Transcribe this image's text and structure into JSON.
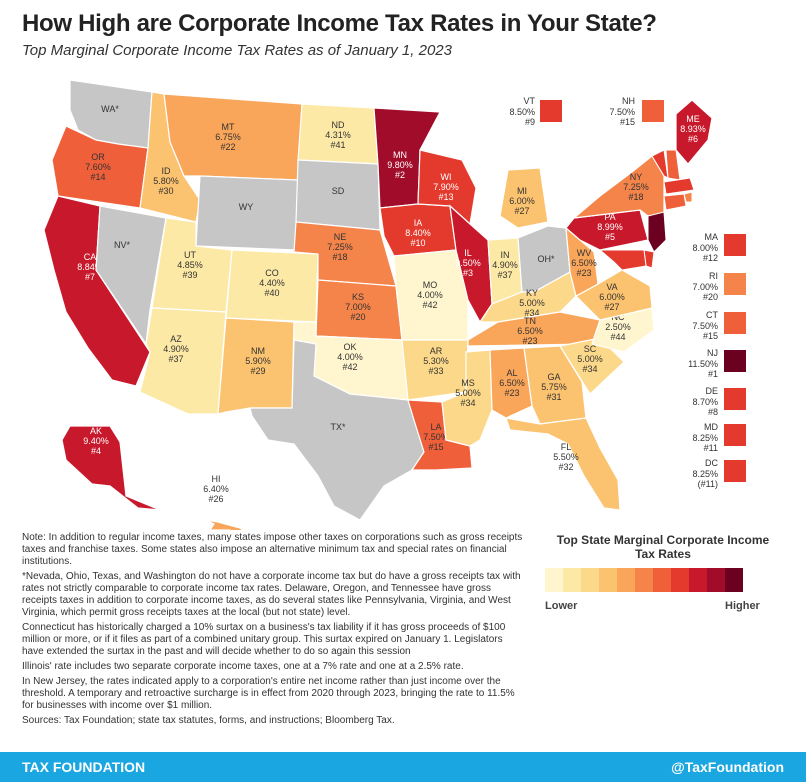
{
  "title": "How High are Corporate Income Tax Rates in Your State?",
  "subtitle": "Top Marginal Corporate Income Tax Rates as of January 1, 2023",
  "colors": {
    "none": "#c6c6c6",
    "c1": "#fff6cf",
    "c2": "#fde9a6",
    "c3": "#fcd98a",
    "c4": "#fbc26f",
    "c5": "#f9a55a",
    "c6": "#f4844a",
    "c7": "#ef5f3a",
    "c8": "#e33a2d",
    "c9": "#c8182b",
    "c10": "#a00c2a",
    "c11": "#6b0020"
  },
  "states": [
    {
      "code": "WA",
      "rate": "",
      "rank": "",
      "label": "WA*",
      "tier": "none"
    },
    {
      "code": "OR",
      "rate": "7.60%",
      "rank": "#14",
      "label": "OR",
      "tier": "c7"
    },
    {
      "code": "CA",
      "rate": "8.84%",
      "rank": "#7",
      "label": "CA",
      "tier": "c9"
    },
    {
      "code": "NV",
      "rate": "",
      "rank": "",
      "label": "NV*",
      "tier": "none"
    },
    {
      "code": "ID",
      "rate": "5.80%",
      "rank": "#30",
      "label": "ID",
      "tier": "c4"
    },
    {
      "code": "MT",
      "rate": "6.75%",
      "rank": "#22",
      "label": "MT",
      "tier": "c5"
    },
    {
      "code": "WY",
      "rate": "",
      "rank": "",
      "label": "WY",
      "tier": "none"
    },
    {
      "code": "UT",
      "rate": "4.85%",
      "rank": "#39",
      "label": "UT",
      "tier": "c2"
    },
    {
      "code": "AZ",
      "rate": "4.90%",
      "rank": "#37",
      "label": "AZ",
      "tier": "c2"
    },
    {
      "code": "CO",
      "rate": "4.40%",
      "rank": "#40",
      "label": "CO",
      "tier": "c2"
    },
    {
      "code": "NM",
      "rate": "5.90%",
      "rank": "#29",
      "label": "NM",
      "tier": "c4"
    },
    {
      "code": "ND",
      "rate": "4.31%",
      "rank": "#41",
      "label": "ND",
      "tier": "c2"
    },
    {
      "code": "SD",
      "rate": "",
      "rank": "",
      "label": "SD",
      "tier": "none"
    },
    {
      "code": "NE",
      "rate": "7.25%",
      "rank": "#18",
      "label": "NE",
      "tier": "c6"
    },
    {
      "code": "KS",
      "rate": "7.00%",
      "rank": "#20",
      "label": "KS",
      "tier": "c6"
    },
    {
      "code": "OK",
      "rate": "4.00%",
      "rank": "#42",
      "label": "OK",
      "tier": "c1"
    },
    {
      "code": "TX",
      "rate": "",
      "rank": "",
      "label": "TX*",
      "tier": "none"
    },
    {
      "code": "MN",
      "rate": "9.80%",
      "rank": "#2",
      "label": "MN",
      "tier": "c10"
    },
    {
      "code": "IA",
      "rate": "8.40%",
      "rank": "#10",
      "label": "IA",
      "tier": "c8"
    },
    {
      "code": "MO",
      "rate": "4.00%",
      "rank": "#42",
      "label": "MO",
      "tier": "c1"
    },
    {
      "code": "AR",
      "rate": "5.30%",
      "rank": "#33",
      "label": "AR",
      "tier": "c3"
    },
    {
      "code": "LA",
      "rate": "7.50%",
      "rank": "#15",
      "label": "LA",
      "tier": "c7"
    },
    {
      "code": "WI",
      "rate": "7.90%",
      "rank": "#13",
      "label": "WI",
      "tier": "c8"
    },
    {
      "code": "IL",
      "rate": "9.50%",
      "rank": "#3",
      "label": "IL",
      "tier": "c9"
    },
    {
      "code": "MI",
      "rate": "6.00%",
      "rank": "#27",
      "label": "MI",
      "tier": "c4"
    },
    {
      "code": "IN",
      "rate": "4.90%",
      "rank": "#37",
      "label": "IN",
      "tier": "c2"
    },
    {
      "code": "OH",
      "rate": "",
      "rank": "",
      "label": "OH*",
      "tier": "none"
    },
    {
      "code": "KY",
      "rate": "5.00%",
      "rank": "#34",
      "label": "KY",
      "tier": "c3"
    },
    {
      "code": "TN",
      "rate": "6.50%",
      "rank": "#23",
      "label": "TN",
      "tier": "c5"
    },
    {
      "code": "MS",
      "rate": "5.00%",
      "rank": "#34",
      "label": "MS",
      "tier": "c3"
    },
    {
      "code": "AL",
      "rate": "6.50%",
      "rank": "#23",
      "label": "AL",
      "tier": "c5"
    },
    {
      "code": "GA",
      "rate": "5.75%",
      "rank": "#31",
      "label": "GA",
      "tier": "c4"
    },
    {
      "code": "FL",
      "rate": "5.50%",
      "rank": "#32",
      "label": "FL",
      "tier": "c4"
    },
    {
      "code": "SC",
      "rate": "5.00%",
      "rank": "#34",
      "label": "SC",
      "tier": "c3"
    },
    {
      "code": "NC",
      "rate": "2.50%",
      "rank": "#44",
      "label": "NC",
      "tier": "c1"
    },
    {
      "code": "VA",
      "rate": "6.00%",
      "rank": "#27",
      "label": "VA",
      "tier": "c4"
    },
    {
      "code": "WV",
      "rate": "6.50%",
      "rank": "#23",
      "label": "WV",
      "tier": "c5"
    },
    {
      "code": "PA",
      "rate": "8.99%",
      "rank": "#5",
      "label": "PA",
      "tier": "c9"
    },
    {
      "code": "NY",
      "rate": "7.25%",
      "rank": "#18",
      "label": "NY",
      "tier": "c6"
    },
    {
      "code": "ME",
      "rate": "8.93%",
      "rank": "#6",
      "label": "ME",
      "tier": "c9"
    },
    {
      "code": "AK",
      "rate": "9.40%",
      "rank": "#4",
      "label": "AK",
      "tier": "c9"
    },
    {
      "code": "HI",
      "rate": "6.40%",
      "rank": "#26",
      "label": "HI",
      "tier": "c5"
    }
  ],
  "callouts": [
    {
      "code": "VT",
      "rate": "8.50%",
      "rank": "#9",
      "tier": "c8"
    },
    {
      "code": "NH",
      "rate": "7.50%",
      "rank": "#15",
      "tier": "c7"
    },
    {
      "code": "MA",
      "rate": "8.00%",
      "rank": "#12",
      "tier": "c8"
    },
    {
      "code": "RI",
      "rate": "7.00%",
      "rank": "#20",
      "tier": "c6"
    },
    {
      "code": "CT",
      "rate": "7.50%",
      "rank": "#15",
      "tier": "c7"
    },
    {
      "code": "NJ",
      "rate": "11.50%",
      "rank": "#1",
      "tier": "c11"
    },
    {
      "code": "DE",
      "rate": "8.70%",
      "rank": "#8",
      "tier": "c8"
    },
    {
      "code": "MD",
      "rate": "8.25%",
      "rank": "#11",
      "tier": "c8"
    },
    {
      "code": "DC",
      "rate": "8.25%",
      "rank": "(#11)",
      "tier": "c8"
    }
  ],
  "notes": [
    "Note: In addition to regular income taxes, many states impose other taxes on corporations such as gross receipts taxes and franchise taxes. Some states also impose an alternative minimum tax and special rates on financial institutions.",
    "*Nevada, Ohio, Texas, and Washington do not have a corporate income tax but do have a gross receipts tax with rates not strictly comparable to corporate income tax rates. Delaware, Oregon, and Tennessee have gross receipts taxes in addition to corporate income taxes, as do several states like Pennsylvania, Virginia, and West Virginia, which permit gross receipts taxes at the local (but not state) level.",
    "Connecticut has historically charged a 10% surtax on a business's tax liability if it has gross proceeds of $100 million or more, or if it files as part of a combined unitary group. This surtax expired on January 1. Legislators have extended the surtax in the past and will decide whether to do so again this session",
    "Illinois' rate includes two separate corporate income taxes, one at a 7% rate and one at a 2.5% rate.",
    "In New Jersey, the rates indicated apply to a corporation's entire net income rather than just income over the threshold. A temporary and retroactive surcharge is in effect from 2020 through 2023, bringing the rate to 11.5% for businesses with income over $1 million.",
    "Sources: Tax Foundation; state tax statutes, forms, and instructions; Bloomberg Tax."
  ],
  "legend": {
    "title": "Top State Marginal Corporate Income Tax Rates",
    "low": "Lower",
    "high": "Higher",
    "swatches": [
      "c1",
      "c2",
      "c3",
      "c4",
      "c5",
      "c6",
      "c7",
      "c8",
      "c9",
      "c10",
      "c11"
    ]
  },
  "footer": {
    "left": "TAX FOUNDATION",
    "right": "@TaxFoundation"
  }
}
